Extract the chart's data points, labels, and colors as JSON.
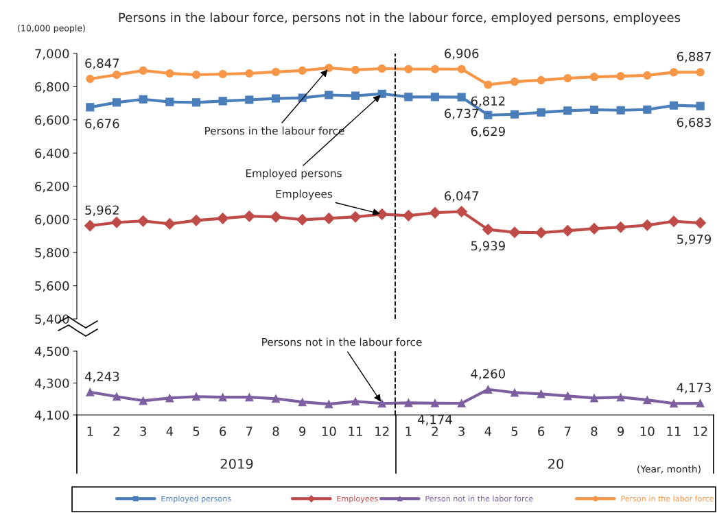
{
  "chart_data": [
    {
      "type": "line",
      "title": "Persons in the labour force, persons not in the labour force, employed persons, employees",
      "ylabel": "(10,000 people)",
      "categories": [
        "1",
        "2",
        "3",
        "4",
        "5",
        "6",
        "7",
        "8",
        "9",
        "10",
        "11",
        "12",
        "1",
        "2",
        "3",
        "4",
        "5",
        "6",
        "7",
        "8",
        "9",
        "10",
        "11",
        "12"
      ],
      "ylim": [
        5400,
        7000
      ],
      "yticks": [
        {
          "value": 5400,
          "label": "5,400"
        },
        {
          "value": 5600,
          "label": "5,600"
        },
        {
          "value": 5800,
          "label": "5,800"
        },
        {
          "value": 6000,
          "label": "6,000"
        },
        {
          "value": 6200,
          "label": "6,200"
        },
        {
          "value": 6400,
          "label": "6,400"
        },
        {
          "value": 6600,
          "label": "6,600"
        },
        {
          "value": 6800,
          "label": "6,800"
        },
        {
          "value": 7000,
          "label": "7,000"
        }
      ],
      "tick_labels": "y",
      "legend": "bottom",
      "grid": false,
      "series": [
        {
          "name": "Employed persons",
          "color": "#4a7ebb",
          "marker": "square",
          "values": [
            6676,
            6705,
            6724,
            6708,
            6705,
            6713,
            6721,
            6729,
            6733,
            6750,
            6745,
            6757,
            6738,
            6738,
            6737,
            6629,
            6633,
            6645,
            6655,
            6661,
            6658,
            6662,
            6687,
            6683
          ],
          "value_labels": [
            "6,676",
            null,
            null,
            null,
            null,
            null,
            null,
            null,
            null,
            null,
            null,
            null,
            null,
            null,
            "6,737",
            "6,629",
            null,
            null,
            null,
            null,
            null,
            null,
            null,
            "6,683"
          ]
        },
        {
          "name": "Employees",
          "color": "#be4b48",
          "marker": "diamond",
          "values": [
            5962,
            5982,
            5990,
            5973,
            5994,
            6006,
            6019,
            6015,
            5998,
            6006,
            6015,
            6031,
            6023,
            6040,
            6047,
            5939,
            5922,
            5920,
            5932,
            5944,
            5953,
            5965,
            5988,
            5979
          ],
          "value_labels": [
            "5,962",
            null,
            null,
            null,
            null,
            null,
            null,
            null,
            null,
            null,
            null,
            null,
            null,
            null,
            "6,047",
            "5,939",
            null,
            null,
            null,
            null,
            null,
            null,
            null,
            "5,979"
          ]
        },
        {
          "name": "Person in the labor force",
          "color": "#f79646",
          "marker": "circle",
          "values": [
            6847,
            6872,
            6897,
            6880,
            6872,
            6876,
            6880,
            6889,
            6897,
            6913,
            6901,
            6909,
            6906,
            6906,
            6906,
            6812,
            6830,
            6839,
            6851,
            6859,
            6863,
            6868,
            6887,
            6887
          ],
          "value_labels": [
            "6,847",
            null,
            null,
            null,
            null,
            null,
            null,
            null,
            null,
            null,
            null,
            null,
            null,
            null,
            "6,906",
            "6,812",
            null,
            null,
            null,
            null,
            null,
            null,
            null,
            "6,887"
          ]
        }
      ],
      "annotations": [
        {
          "text": "Persons in the labour force",
          "x": "10",
          "y": 6913
        },
        {
          "text": "Employed persons",
          "x": "12",
          "y": 6757
        },
        {
          "text": "Employees",
          "x": "12",
          "y": 6031
        }
      ]
    },
    {
      "type": "line",
      "categories": [
        "1",
        "2",
        "3",
        "4",
        "5",
        "6",
        "7",
        "8",
        "9",
        "10",
        "11",
        "12",
        "1",
        "2",
        "3",
        "4",
        "5",
        "6",
        "7",
        "8",
        "9",
        "10",
        "11",
        "12"
      ],
      "ylim": [
        4100,
        4500
      ],
      "yticks": [
        {
          "value": 4100,
          "label": "4,100"
        },
        {
          "value": 4300,
          "label": "4,300"
        },
        {
          "value": 4500,
          "label": "4,500"
        }
      ],
      "grid": false,
      "series": [
        {
          "name": "Person not in the labor force",
          "color": "#7d5fa0",
          "marker": "triangle",
          "values": [
            4243,
            4215,
            4189,
            4206,
            4215,
            4211,
            4211,
            4202,
            4181,
            4168,
            4185,
            4172,
            4176,
            4174,
            4173,
            4260,
            4240,
            4232,
            4219,
            4206,
            4211,
            4194,
            4172,
            4173
          ],
          "value_labels": [
            "4,243",
            null,
            null,
            null,
            null,
            null,
            null,
            null,
            null,
            null,
            null,
            null,
            null,
            "4,174",
            null,
            "4,260",
            null,
            null,
            null,
            null,
            null,
            null,
            null,
            "4,173"
          ]
        }
      ],
      "annotations": [
        {
          "text": "Persons not in the labour force",
          "x": "12",
          "y": 4172
        },
        "2019",
        "20",
        "(Year, month)"
      ]
    }
  ]
}
